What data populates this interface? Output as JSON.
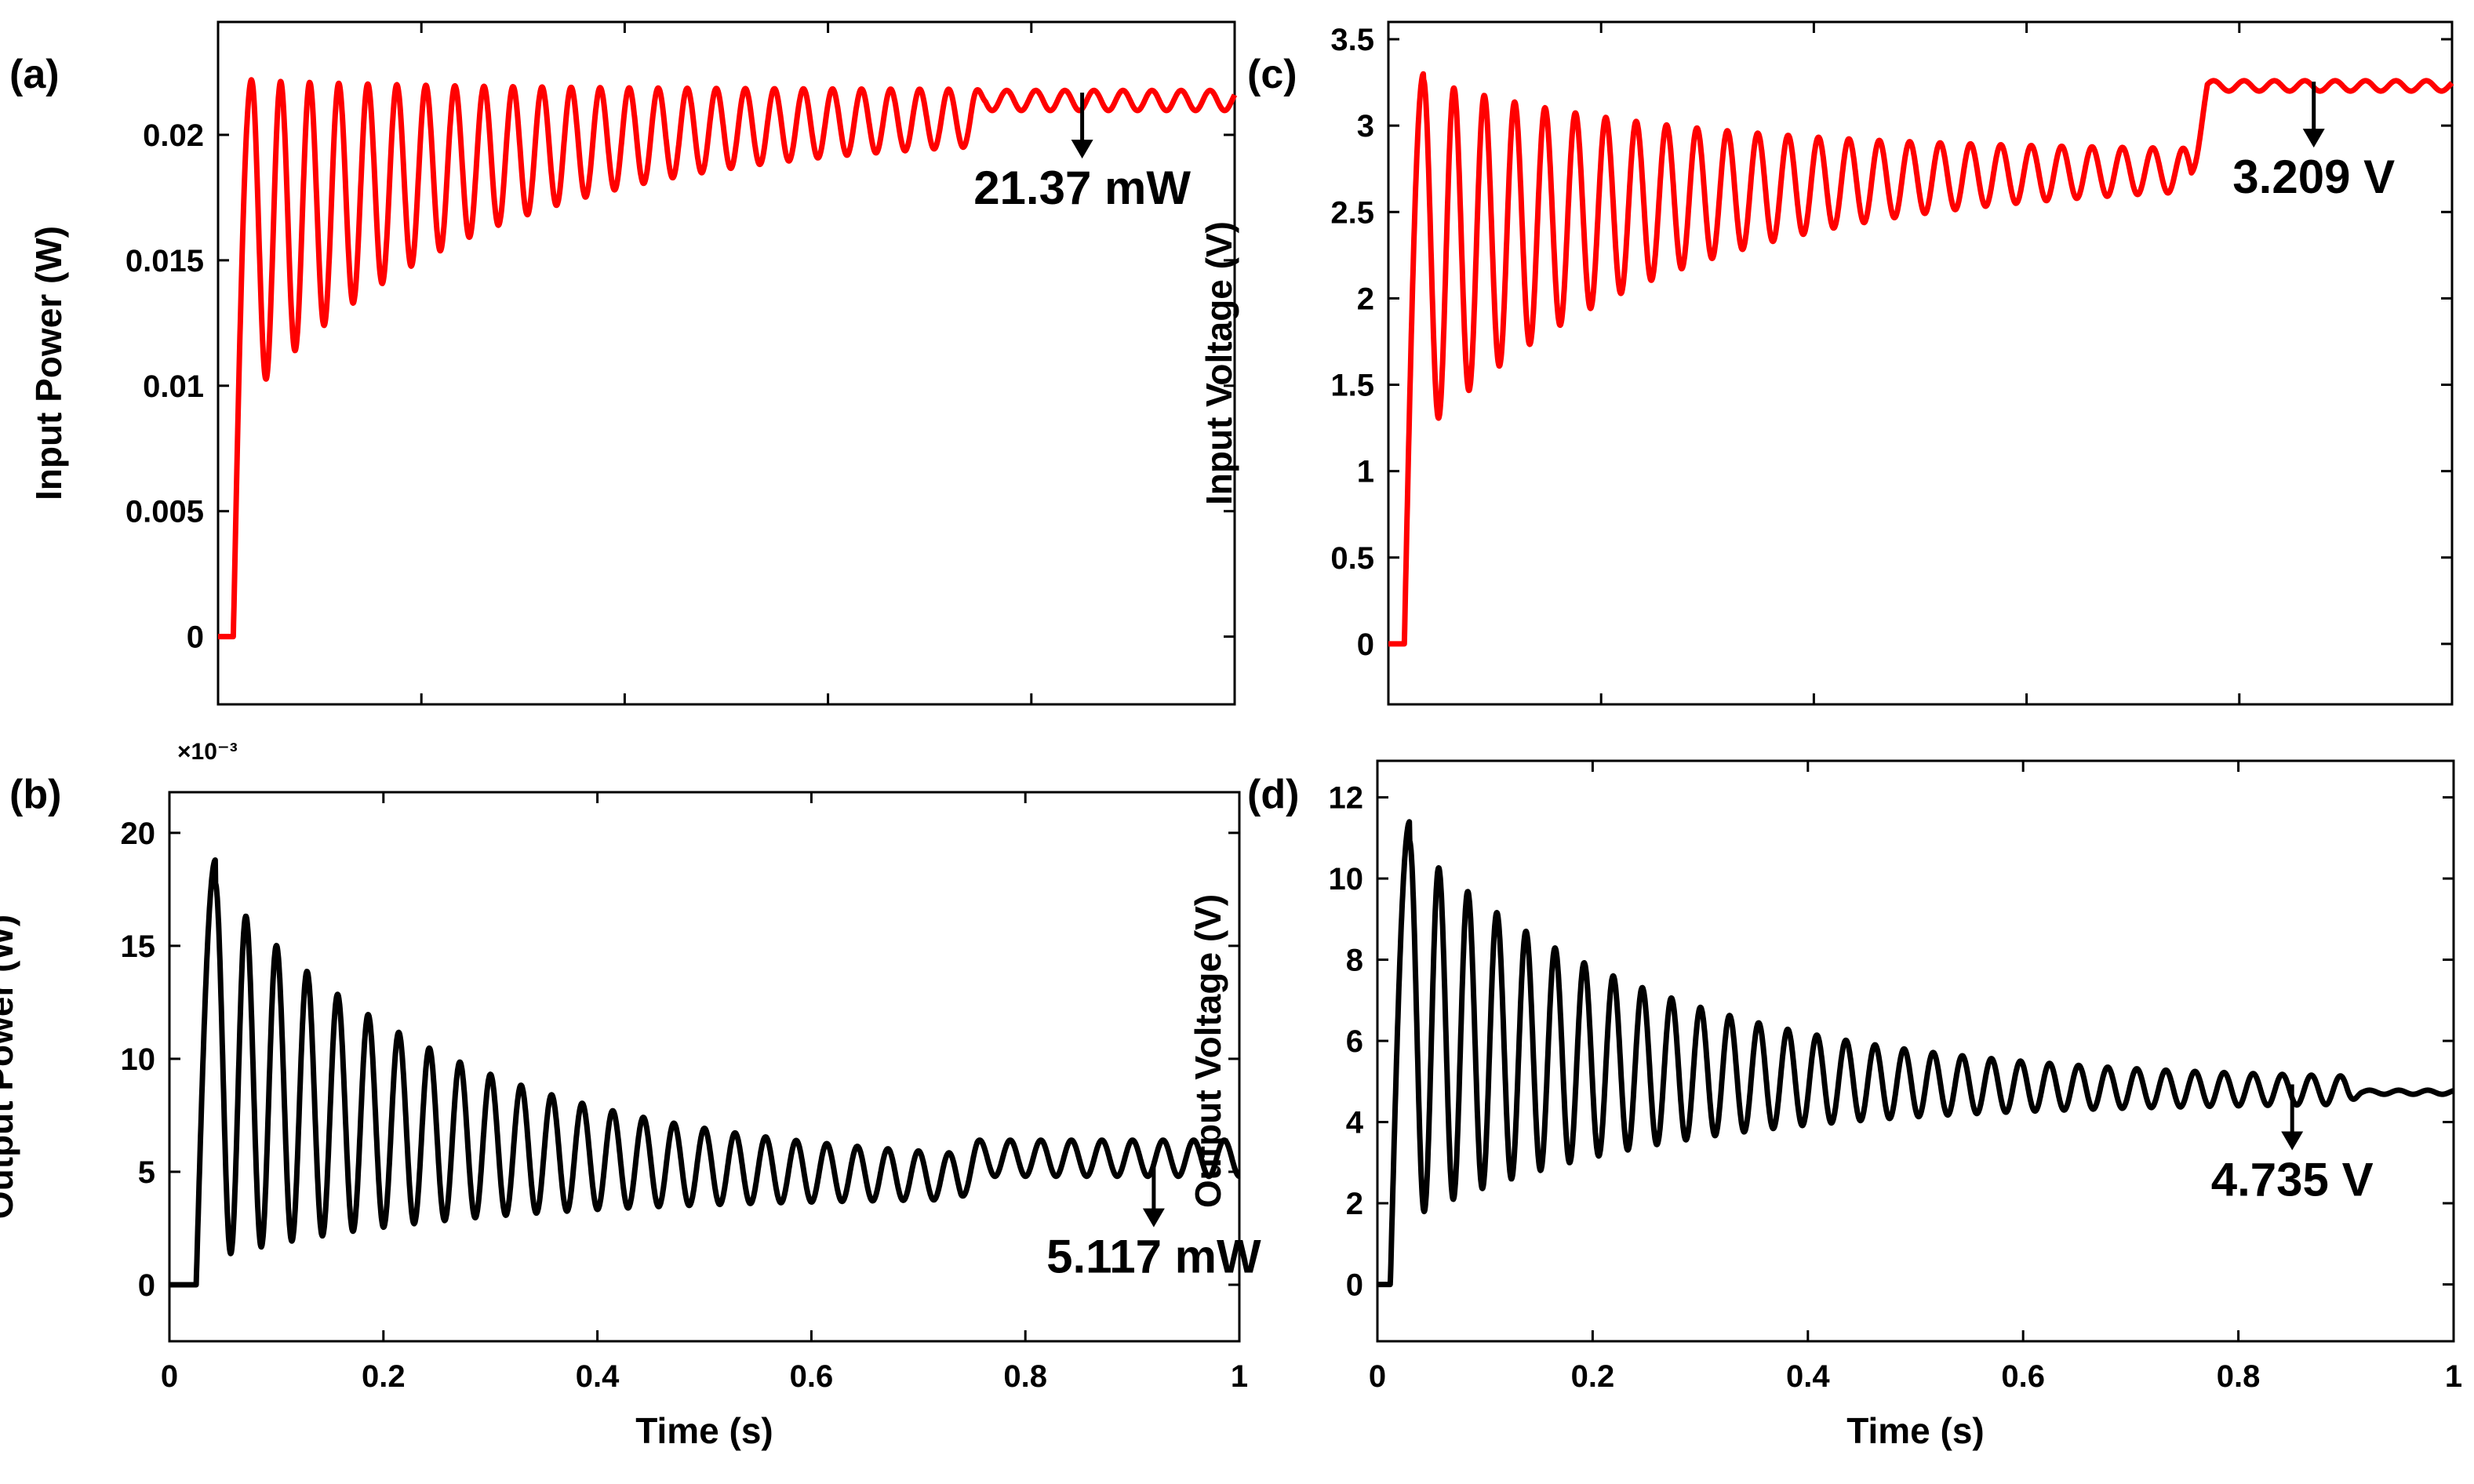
{
  "figure": {
    "x_axis_label": "Time (s)",
    "x_ticks": [
      "0",
      "0.2",
      "0.4",
      "0.6",
      "0.8",
      "1"
    ]
  },
  "chart_data": [
    {
      "id": "a",
      "type": "line",
      "panel_label": "(a)",
      "xlabel": "",
      "ylabel": "Input Power (W)",
      "xlim": [
        0,
        1
      ],
      "ylim": [
        -0.0027,
        0.0245
      ],
      "yticks": [
        0,
        0.005,
        0.01,
        0.015,
        0.02
      ],
      "ytick_labels": [
        "0",
        "0.005",
        "0.01",
        "0.015",
        "0.02"
      ],
      "color": "#ff0000",
      "annotation": {
        "text": "21.37 mW",
        "x": 0.85,
        "y": 0.02137
      },
      "signal": {
        "t_start": 0.015,
        "initial": 0,
        "peak": 0.0222,
        "first_min": 0.0088,
        "mid_min": 0.02,
        "mid_max": 0.0218,
        "t_step": 0.74,
        "final": 0.02137,
        "final_amp": 0.0004,
        "freq": 35
      }
    },
    {
      "id": "b",
      "type": "line",
      "panel_label": "(b)",
      "xlabel": "Time (s)",
      "ylabel": "Output Power (W)",
      "xlim": [
        0,
        1
      ],
      "ylim": [
        -2.5,
        21.8
      ],
      "yticks": [
        0,
        5,
        10,
        15,
        20
      ],
      "ytick_labels": [
        "0",
        "5",
        "10",
        "15",
        "20"
      ],
      "y_multiplier": "×10⁻³",
      "color": "#000000",
      "annotation": {
        "text": "5.117 mW",
        "x": 0.92,
        "y": 5.117
      },
      "signal": {
        "t_start": 0.025,
        "initial": 0,
        "peak": 18.8,
        "first_min": 1.0,
        "mid_min": 3.9,
        "mid_max": 5.2,
        "t_step": 0.74,
        "final": 5.6,
        "final_amp": 0.8,
        "freq": 35
      }
    },
    {
      "id": "c",
      "type": "line",
      "panel_label": "(c)",
      "xlabel": "",
      "ylabel": "Input Voltage (V)",
      "xlim": [
        0,
        1
      ],
      "ylim": [
        -0.35,
        3.6
      ],
      "yticks": [
        0,
        0.5,
        1,
        1.5,
        2,
        2.5,
        3,
        3.5
      ],
      "ytick_labels": [
        "0",
        "0.5",
        "1",
        "1.5",
        "2",
        "2.5",
        "3",
        "3.5"
      ],
      "color": "#ff0000",
      "annotation": {
        "text": "3.209 V",
        "x": 0.87,
        "y": 3.209
      },
      "signal": {
        "t_start": 0.015,
        "initial": 0,
        "peak": 3.3,
        "first_min": 1.1,
        "mid_min": 2.68,
        "mid_max": 2.85,
        "t_step": 0.755,
        "final": 3.23,
        "final_amp": 0.03,
        "freq": 35
      }
    },
    {
      "id": "d",
      "type": "line",
      "panel_label": "(d)",
      "xlabel": "Time (s)",
      "ylabel": "Output Voltage (V)",
      "xlim": [
        0,
        1
      ],
      "ylim": [
        -1.4,
        12.9
      ],
      "yticks": [
        0,
        2,
        4,
        6,
        8,
        10,
        12
      ],
      "ytick_labels": [
        "0",
        "2",
        "4",
        "6",
        "8",
        "10",
        "12"
      ],
      "color": "#000000",
      "annotation": {
        "text": "4.735 V",
        "x": 0.85,
        "y": 4.735
      },
      "signal": {
        "t_start": 0.012,
        "initial": 0,
        "peak": 11.4,
        "first_min": 1.4,
        "mid_min": 4.5,
        "mid_max": 5.0,
        "t_step": 0.9,
        "final": 4.735,
        "final_amp": 0.05,
        "freq": 37
      }
    }
  ]
}
